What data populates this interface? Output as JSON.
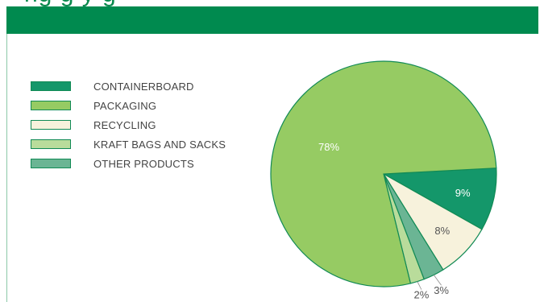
{
  "page": {
    "top_cropped_text": "ng g         y g"
  },
  "colors": {
    "header": "#008a4f",
    "outline": "#118a55"
  },
  "chart_data": {
    "type": "pie",
    "title": "",
    "legend_position": "left",
    "categories": [
      "CONTAINERBOARD",
      "PACKAGING",
      "RECYCLING",
      "KRAFT BAGS AND SACKS",
      "OTHER PRODUCTS"
    ],
    "values": [
      9,
      78,
      8,
      2,
      3
    ],
    "value_labels": [
      "9%",
      "78%",
      "8%",
      "2%",
      "3%"
    ],
    "colors": [
      "#14976a",
      "#96cb63",
      "#f7f2dc",
      "#b9dc9b",
      "#6bb594"
    ],
    "label_colors": [
      "#ffffff",
      "#ffffff",
      "#555555",
      "#555555",
      "#555555"
    ],
    "slice_order": [
      0,
      2,
      4,
      3,
      1
    ]
  }
}
